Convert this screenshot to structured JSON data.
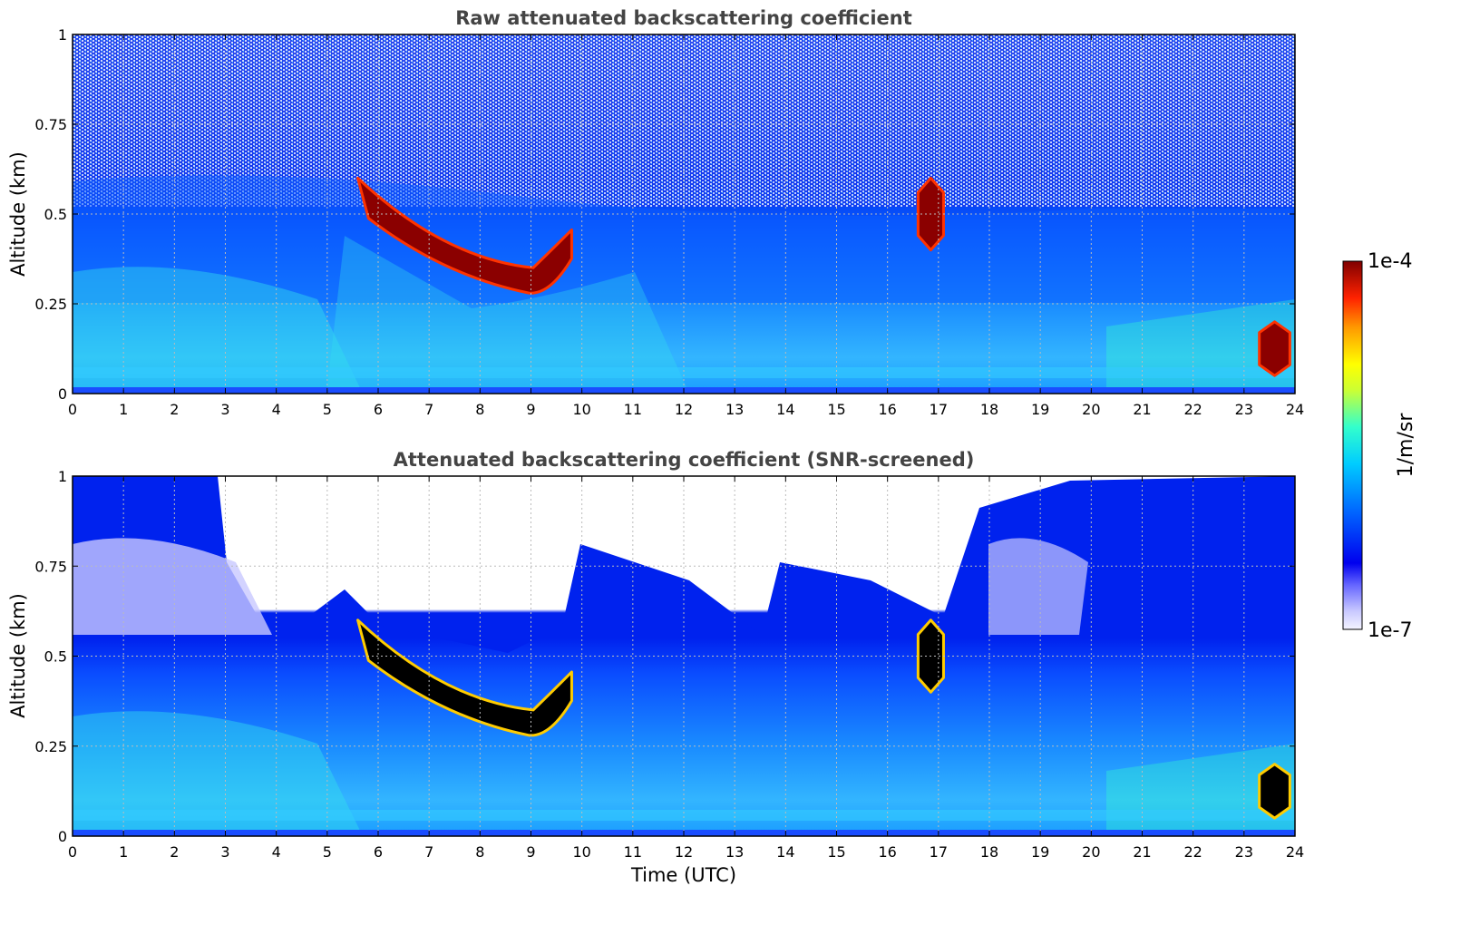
{
  "chart_data": [
    {
      "type": "heatmap",
      "title": "Raw attenuated backscattering coefficient",
      "xlabel": "",
      "ylabel": "Altitude (km)",
      "xlim": [
        0,
        24
      ],
      "ylim": [
        0,
        1
      ],
      "x_ticks": [
        "0",
        "1",
        "2",
        "3",
        "4",
        "5",
        "6",
        "7",
        "8",
        "9",
        "10",
        "11",
        "12",
        "13",
        "14",
        "15",
        "16",
        "17",
        "18",
        "19",
        "20",
        "21",
        "22",
        "23",
        "24"
      ],
      "y_ticks": [
        "0",
        "0.25",
        "0.5",
        "0.75",
        "1"
      ],
      "grid": true,
      "snr_screened": false,
      "features": [
        {
          "time": [
            5.6,
            9.8
          ],
          "altitude": [
            0.28,
            0.6
          ],
          "level": "high"
        },
        {
          "time": [
            16.6,
            17.1
          ],
          "altitude": [
            0.4,
            0.6
          ],
          "level": "high"
        },
        {
          "time": [
            23.3,
            23.9
          ],
          "altitude": [
            0.05,
            0.2
          ],
          "level": "high"
        }
      ]
    },
    {
      "type": "heatmap",
      "title": "Attenuated backscattering coefficient (SNR-screened)",
      "xlabel": "Time (UTC)",
      "ylabel": "Altitude (km)",
      "xlim": [
        0,
        24
      ],
      "ylim": [
        0,
        1
      ],
      "x_ticks": [
        "0",
        "1",
        "2",
        "3",
        "4",
        "5",
        "6",
        "7",
        "8",
        "9",
        "10",
        "11",
        "12",
        "13",
        "14",
        "15",
        "16",
        "17",
        "18",
        "19",
        "20",
        "21",
        "22",
        "23",
        "24"
      ],
      "y_ticks": [
        "0",
        "0.25",
        "0.5",
        "0.75",
        "1"
      ],
      "grid": true,
      "snr_screened": true,
      "features": [
        {
          "time": [
            5.6,
            9.8
          ],
          "altitude": [
            0.28,
            0.6
          ],
          "level": "saturated"
        },
        {
          "time": [
            16.6,
            17.1
          ],
          "altitude": [
            0.4,
            0.6
          ],
          "level": "saturated"
        },
        {
          "time": [
            23.3,
            23.9
          ],
          "altitude": [
            0.05,
            0.2
          ],
          "level": "saturated"
        }
      ]
    }
  ],
  "colorbar": {
    "max_label": "1e-4",
    "min_label": "1e-7",
    "label": "1/m/sr",
    "colormap": "jet"
  }
}
